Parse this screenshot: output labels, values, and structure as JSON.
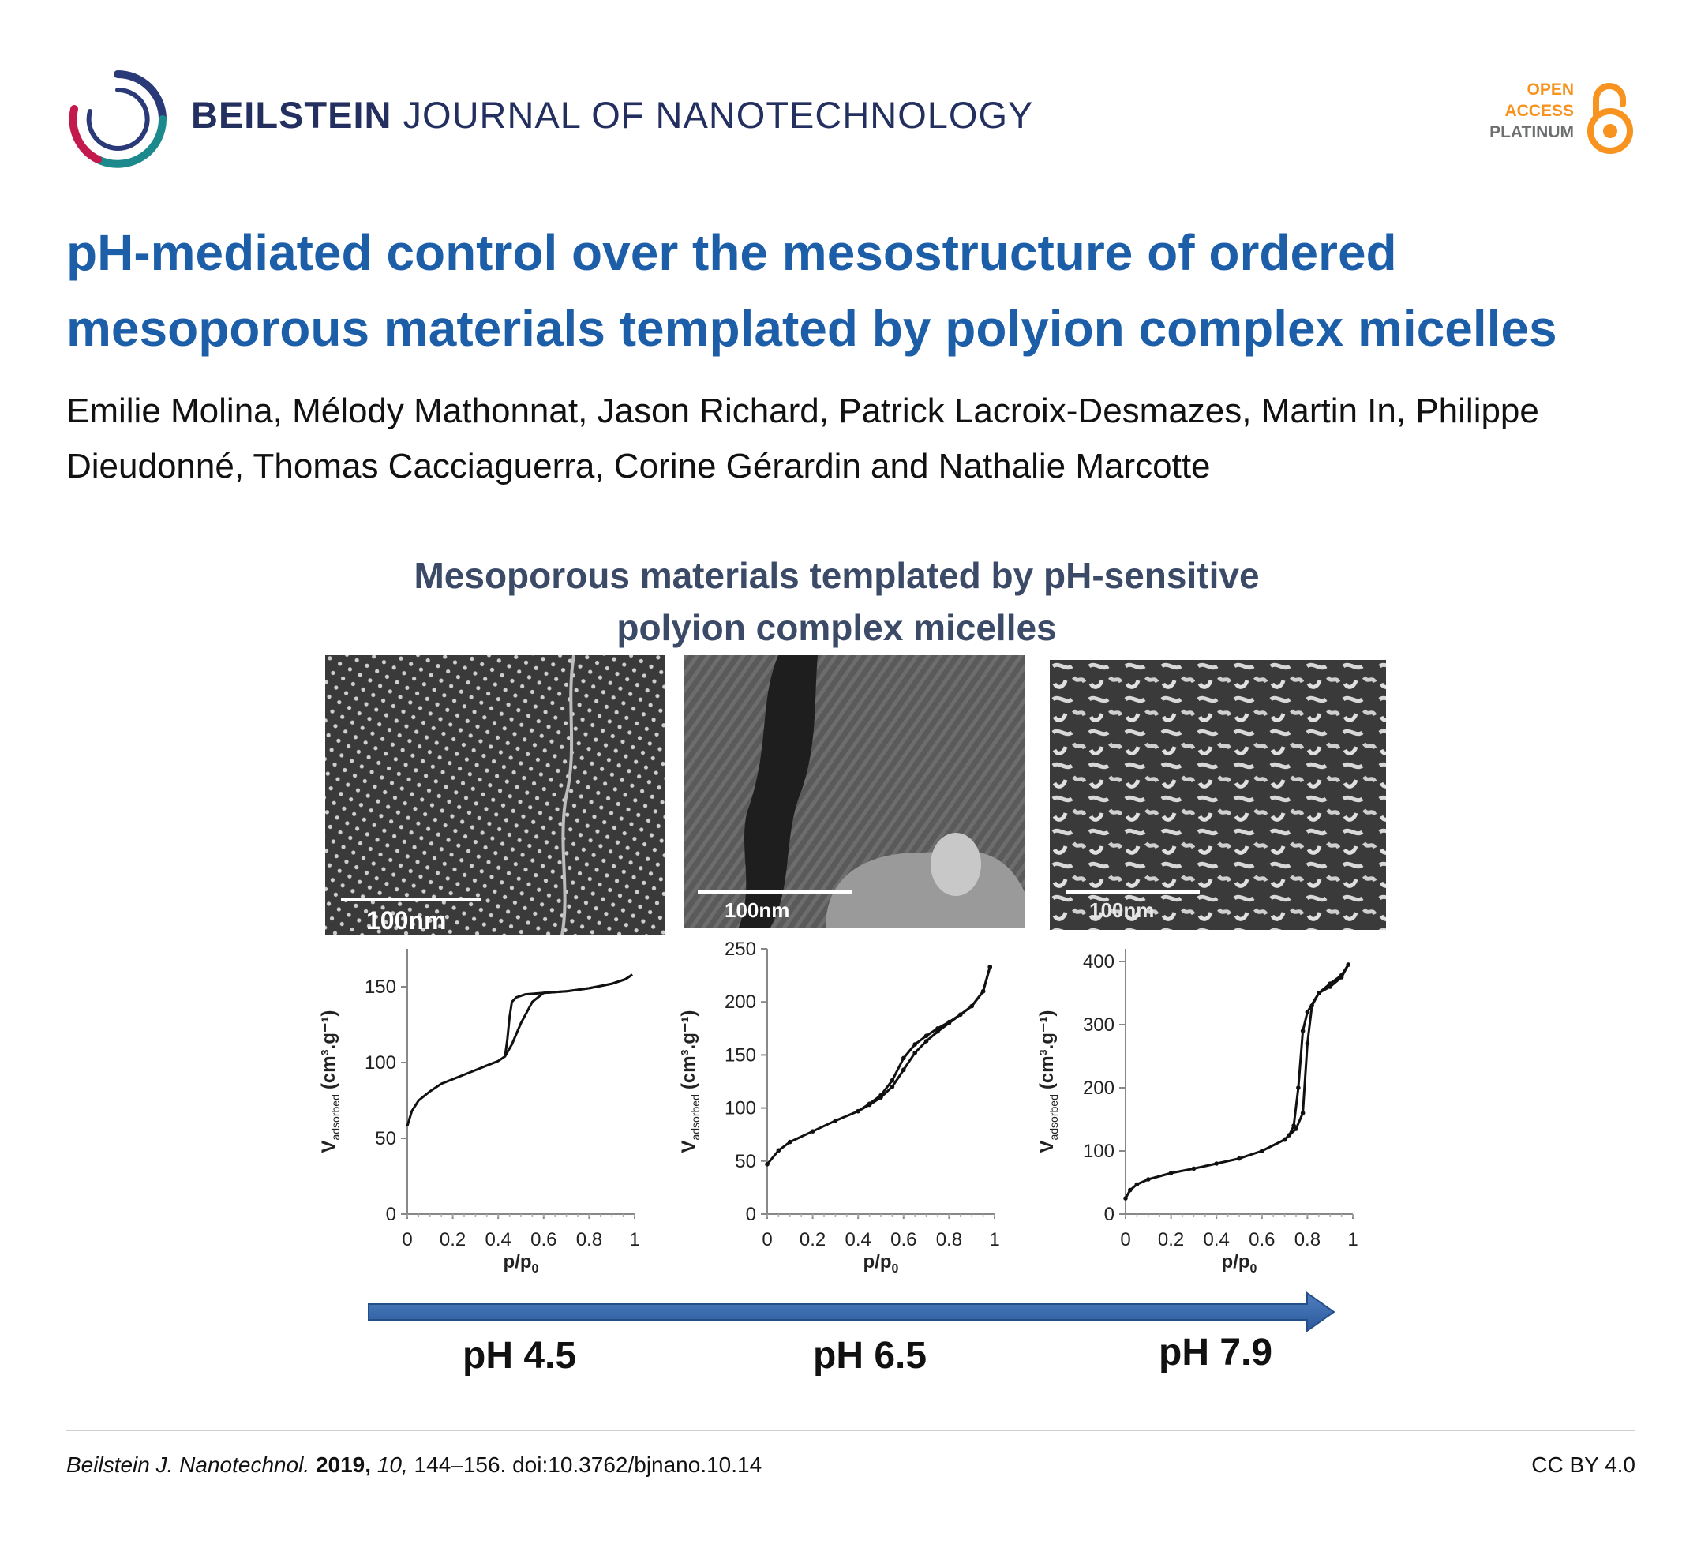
{
  "header": {
    "journal_bold": "BEILSTEIN",
    "journal_rest": "JOURNAL OF NANOTECHNOLOGY",
    "badge": {
      "line1": "OPEN",
      "line2": "ACCESS",
      "line3": "PLATINUM"
    }
  },
  "article": {
    "title": "pH-mediated control over the mesostructure of ordered mesoporous materials templated by polyion complex micelles",
    "authors": "Emilie Molina, Mélody Mathonnat, Jason Richard, Patrick Lacroix-Desmazes, Martin In, Philippe Dieudonné, Thomas Cacciaguerra, Corine Gérardin and Nathalie Marcotte"
  },
  "figure": {
    "title_line1": "Mesoporous materials templated by pH-sensitive",
    "title_line2": "polyion complex micelles",
    "panels": [
      {
        "scale_label": "100nm",
        "ph_label": "pH  4.5"
      },
      {
        "scale_label": "100nm",
        "ph_label": "pH  6.5"
      },
      {
        "scale_label": "100nm",
        "ph_label": "pH  7.9"
      }
    ],
    "x_axis_title": "p/p",
    "x_axis_sub": "0",
    "y_axis_title": "V",
    "y_axis_sub": "adsorbed",
    "y_axis_unit": "(cm³.g⁻¹)"
  },
  "chart_data": [
    {
      "type": "line",
      "xlabel": "p/p0",
      "ylabel": "Vadsorbed (cm3.g-1)",
      "xlim": [
        0,
        1
      ],
      "ylim": [
        0,
        175
      ],
      "xticks": [
        0,
        0.2,
        0.4,
        0.6,
        0.8,
        1
      ],
      "yticks": [
        0,
        50,
        100,
        150
      ],
      "series": [
        {
          "x": [
            0.0,
            0.02,
            0.05,
            0.1,
            0.15,
            0.2,
            0.25,
            0.3,
            0.35,
            0.4,
            0.43,
            0.46,
            0.5,
            0.55,
            0.6,
            0.7,
            0.8,
            0.9,
            0.96,
            0.99
          ],
          "y": [
            58,
            68,
            75,
            81,
            86,
            89,
            92,
            95,
            98,
            101,
            104,
            112,
            126,
            140,
            146,
            147,
            149,
            152,
            155,
            158
          ]
        },
        {
          "x": [
            0.99,
            0.96,
            0.9,
            0.8,
            0.7,
            0.6,
            0.52,
            0.48,
            0.46,
            0.45,
            0.44,
            0.43
          ],
          "y": [
            158,
            155,
            152,
            149,
            147,
            146,
            145,
            143,
            140,
            130,
            115,
            104
          ]
        }
      ]
    },
    {
      "type": "line",
      "xlabel": "p/p0",
      "ylabel": "Vadsorbed (cm3.g-1)",
      "xlim": [
        0,
        1
      ],
      "ylim": [
        0,
        250
      ],
      "xticks": [
        0,
        0.2,
        0.4,
        0.6,
        0.8,
        1
      ],
      "yticks": [
        0,
        50,
        100,
        150,
        200,
        250
      ],
      "series": [
        {
          "x": [
            0.0,
            0.05,
            0.1,
            0.2,
            0.3,
            0.4,
            0.45,
            0.5,
            0.55,
            0.6,
            0.65,
            0.7,
            0.75,
            0.8,
            0.85,
            0.9,
            0.95,
            0.98
          ],
          "y": [
            47,
            60,
            68,
            78,
            88,
            97,
            103,
            110,
            120,
            136,
            152,
            163,
            172,
            180,
            188,
            196,
            210,
            233
          ]
        },
        {
          "x": [
            0.98,
            0.95,
            0.9,
            0.85,
            0.8,
            0.75,
            0.7,
            0.65,
            0.6,
            0.55,
            0.5,
            0.45,
            0.4
          ],
          "y": [
            233,
            210,
            196,
            188,
            181,
            175,
            168,
            160,
            147,
            126,
            112,
            104,
            97
          ]
        }
      ]
    },
    {
      "type": "line",
      "xlabel": "p/p0",
      "ylabel": "Vadsorbed (cm3.g-1)",
      "xlim": [
        0,
        1
      ],
      "ylim": [
        0,
        420
      ],
      "xticks": [
        0,
        0.2,
        0.4,
        0.6,
        0.8,
        1
      ],
      "yticks": [
        0,
        100,
        200,
        300,
        400
      ],
      "series": [
        {
          "x": [
            0.0,
            0.02,
            0.05,
            0.1,
            0.2,
            0.3,
            0.4,
            0.5,
            0.6,
            0.7,
            0.75,
            0.78,
            0.8,
            0.82,
            0.85,
            0.9,
            0.95,
            0.98
          ],
          "y": [
            25,
            38,
            47,
            55,
            65,
            72,
            80,
            88,
            100,
            118,
            135,
            160,
            270,
            330,
            350,
            360,
            375,
            395
          ]
        },
        {
          "x": [
            0.98,
            0.95,
            0.9,
            0.85,
            0.8,
            0.78,
            0.76,
            0.74,
            0.72,
            0.7
          ],
          "y": [
            395,
            378,
            365,
            350,
            320,
            290,
            200,
            140,
            125,
            118
          ]
        }
      ]
    }
  ],
  "footer": {
    "journal": "Beilstein J. Nanotechnol.",
    "year": "2019,",
    "volume": "10,",
    "pages_doi": " 144–156. doi:10.3762/bjnano.10.14",
    "license": "CC BY 4.0"
  }
}
